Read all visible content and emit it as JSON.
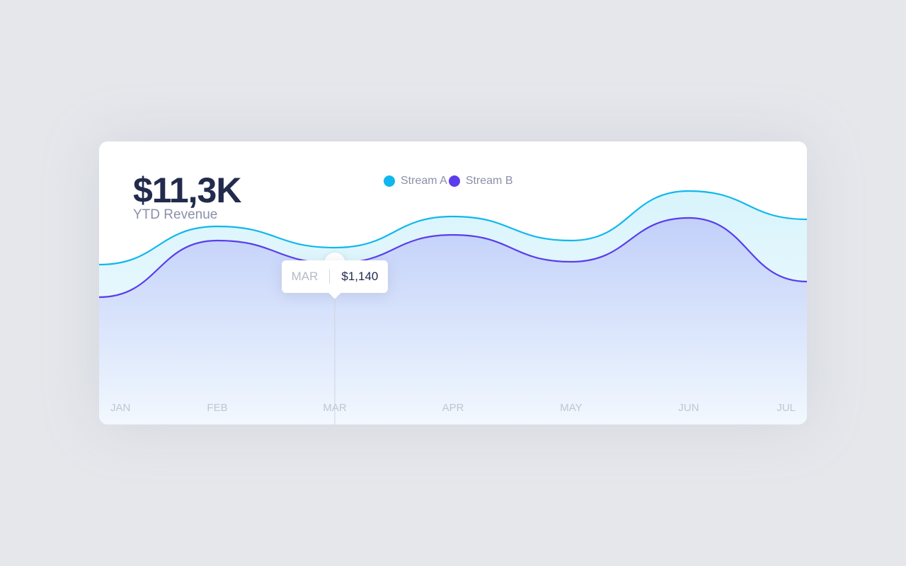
{
  "headline": {
    "value": "$11,3K",
    "label": "YTD Revenue"
  },
  "tooltip": {
    "label": "MAR",
    "value": "$1,140"
  },
  "colors": {
    "stream_a": "#0fb8ec",
    "stream_b": "#5b3ded",
    "background": "#e5e7eb",
    "card": "#ffffff"
  },
  "chart_data": {
    "type": "area",
    "title": "",
    "xlabel": "",
    "ylabel": "",
    "categories": [
      "JAN",
      "FEB",
      "MAR",
      "APR",
      "MAY",
      "JUN",
      "JUL"
    ],
    "ylim": [
      0,
      2000
    ],
    "grid": false,
    "legend": "top-center",
    "series": [
      {
        "name": "Stream A",
        "color": "#0fb8ec",
        "values": [
          1130,
          1400,
          1250,
          1470,
          1300,
          1650,
          1450
        ]
      },
      {
        "name": "Stream B",
        "color": "#5b3ded",
        "values": [
          900,
          1300,
          1140,
          1340,
          1150,
          1460,
          1010
        ]
      }
    ],
    "highlight": {
      "category": "MAR",
      "series": "Stream B",
      "value": 1140
    }
  }
}
